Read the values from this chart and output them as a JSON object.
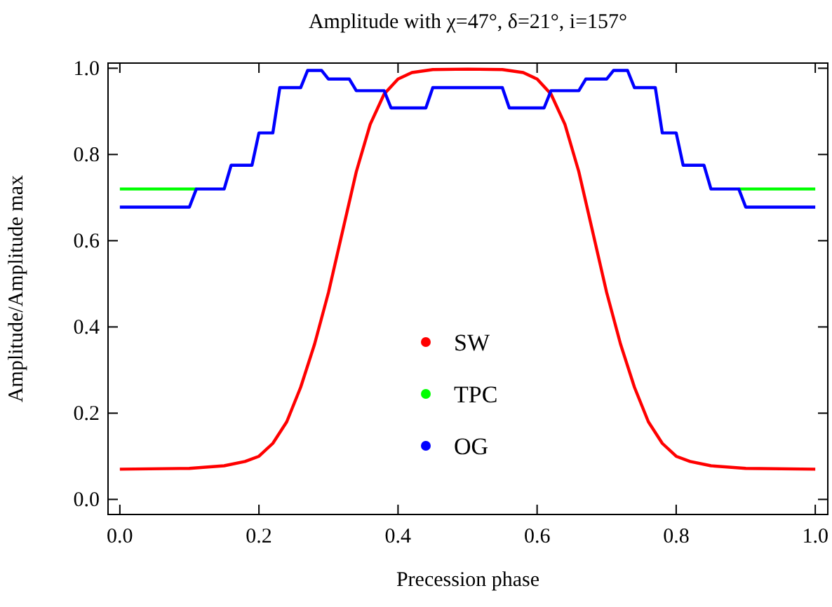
{
  "chart_data": {
    "type": "line",
    "title": "Amplitude with χ=47°, δ=21°, i=157°",
    "xlabel": "Precession phase",
    "ylabel": "Amplitude/Amplitude max",
    "xlim": [
      -0.017,
      1.018
    ],
    "ylim": [
      -0.035,
      1.012
    ],
    "xticks": [
      {
        "value": 0,
        "label": "0.0"
      },
      0.2,
      0.4,
      0.6,
      0.8,
      {
        "value": 1,
        "label": "1.0"
      }
    ],
    "yticks": [
      {
        "value": 0,
        "label": "0.0"
      },
      0.2,
      0.4,
      0.6,
      0.8,
      {
        "value": 1,
        "label": "1.0"
      }
    ],
    "grid": false,
    "legend": "center",
    "marker": "none",
    "line_style": "solid",
    "series": [
      {
        "name": "SW",
        "color": "#ff0000",
        "x": [
          0,
          0.1,
          0.15,
          0.18,
          0.2,
          0.22,
          0.24,
          0.26,
          0.28,
          0.3,
          0.32,
          0.34,
          0.36,
          0.38,
          0.4,
          0.42,
          0.45,
          0.5,
          0.55,
          0.58,
          0.6,
          0.62,
          0.64,
          0.66,
          0.68,
          0.7,
          0.72,
          0.74,
          0.76,
          0.78,
          0.8,
          0.82,
          0.85,
          0.9,
          1
        ],
        "values": [
          0.07,
          0.072,
          0.078,
          0.088,
          0.1,
          0.13,
          0.18,
          0.26,
          0.36,
          0.48,
          0.62,
          0.76,
          0.87,
          0.94,
          0.975,
          0.99,
          0.997,
          0.998,
          0.997,
          0.99,
          0.975,
          0.94,
          0.87,
          0.76,
          0.62,
          0.48,
          0.36,
          0.26,
          0.18,
          0.13,
          0.1,
          0.088,
          0.078,
          0.072,
          0.07
        ]
      },
      {
        "name": "TPC",
        "color": "#00ff00",
        "x": [
          0,
          0.11,
          0.5,
          0.89,
          1
        ],
        "values": [
          0.72,
          0.72,
          null,
          0.72,
          0.72
        ]
      },
      {
        "name": "OG",
        "color": "#0000ff",
        "x": [
          0,
          0.1,
          0.11,
          0.15,
          0.16,
          0.19,
          0.2,
          0.22,
          0.23,
          0.26,
          0.27,
          0.29,
          0.3,
          0.33,
          0.34,
          0.38,
          0.39,
          0.44,
          0.45,
          0.55,
          0.56,
          0.61,
          0.62,
          0.66,
          0.67,
          0.7,
          0.71,
          0.73,
          0.74,
          0.77,
          0.78,
          0.8,
          0.81,
          0.84,
          0.85,
          0.89,
          0.9,
          1
        ],
        "values": [
          0.678,
          0.678,
          0.72,
          0.72,
          0.775,
          0.775,
          0.85,
          0.85,
          0.955,
          0.955,
          0.995,
          0.995,
          0.975,
          0.975,
          0.948,
          0.948,
          0.908,
          0.908,
          0.955,
          0.955,
          0.908,
          0.908,
          0.948,
          0.948,
          0.975,
          0.975,
          0.995,
          0.995,
          0.955,
          0.955,
          0.85,
          0.85,
          0.775,
          0.775,
          0.72,
          0.72,
          0.678,
          0.678
        ]
      }
    ]
  }
}
